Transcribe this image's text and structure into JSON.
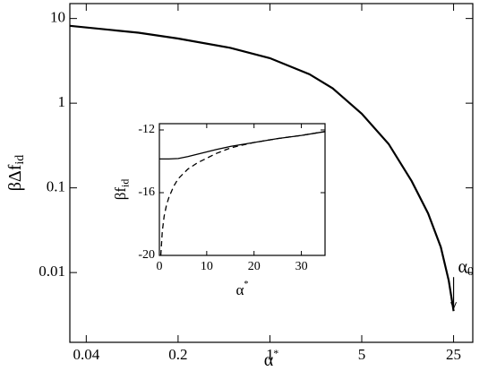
{
  "chart_data": [
    {
      "type": "line",
      "x_scale": "log",
      "y_scale": "log",
      "xlabel": {
        "text": "α",
        "sup": "*"
      },
      "ylabel": {
        "text": "βΔf",
        "sub": "id"
      },
      "xlim": [
        0.03,
        35
      ],
      "ylim": [
        0.0015,
        15
      ],
      "xticks": [
        0.04,
        0.2,
        1,
        5,
        25
      ],
      "yticks": [
        0.01,
        0.1,
        1,
        10
      ],
      "x": [
        0.03,
        0.1,
        0.2,
        0.5,
        1,
        2,
        3,
        5,
        8,
        12,
        16,
        20,
        23,
        25
      ],
      "series": [
        {
          "color": "#000000",
          "dash": false,
          "values": [
            8.2,
            6.8,
            5.8,
            4.5,
            3.4,
            2.2,
            1.5,
            0.75,
            0.33,
            0.12,
            0.05,
            0.02,
            0.008,
            0.0035
          ]
        }
      ],
      "annotation": {
        "text": "α",
        "sub": "0",
        "x": 25,
        "y": 0.0035
      }
    },
    {
      "type": "line",
      "inset": true,
      "xlabel": {
        "text": "α",
        "sup": "*"
      },
      "ylabel": {
        "text": "βf",
        "sub": "id"
      },
      "xlim": [
        0,
        35
      ],
      "ylim": [
        -20,
        -11.6
      ],
      "xticks": [
        0,
        10,
        20,
        30
      ],
      "yticks": [
        -20,
        -16,
        -12
      ],
      "series": [
        {
          "color": "#000000",
          "dash": false,
          "x": [
            0,
            2,
            4,
            6,
            8,
            10,
            12,
            15,
            20,
            25,
            30,
            35
          ],
          "values": [
            -13.85,
            -13.85,
            -13.82,
            -13.7,
            -13.55,
            -13.4,
            -13.25,
            -13.05,
            -12.8,
            -12.55,
            -12.35,
            -12.1
          ]
        },
        {
          "color": "#000000",
          "dash": true,
          "x": [
            0.3,
            0.6,
            1,
            1.5,
            2,
            3,
            4,
            6,
            8,
            10,
            12,
            15,
            17,
            20,
            25,
            30,
            35
          ],
          "values": [
            -20,
            -18.5,
            -17.5,
            -16.8,
            -16.3,
            -15.6,
            -15.1,
            -14.5,
            -14.1,
            -13.8,
            -13.5,
            -13.15,
            -13.0,
            -12.8,
            -12.55,
            -12.35,
            -12.1
          ]
        }
      ]
    }
  ]
}
